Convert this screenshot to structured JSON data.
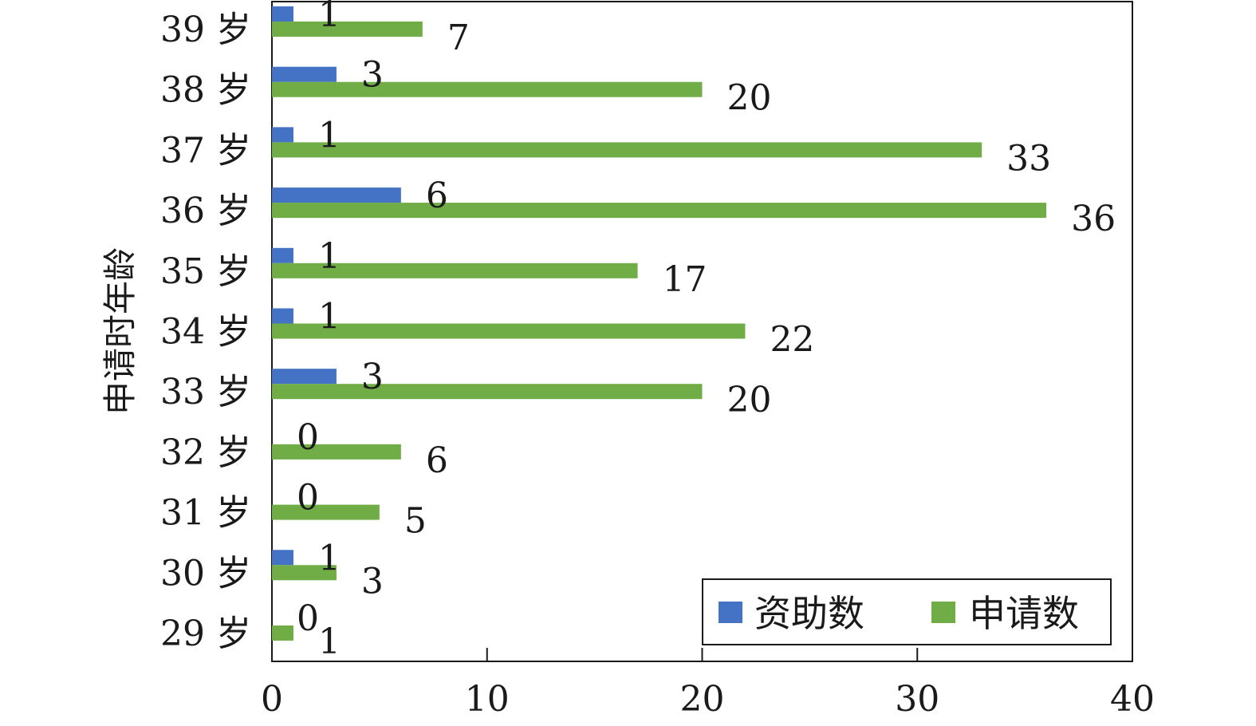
{
  "chart_data": {
    "type": "bar",
    "orientation": "horizontal",
    "ylabel": "申请时年龄",
    "xlabel": "",
    "categories": [
      "29 岁",
      "30 岁",
      "31 岁",
      "32 岁",
      "33 岁",
      "34 岁",
      "35 岁",
      "36 岁",
      "37 岁",
      "38 岁",
      "39 岁"
    ],
    "series": [
      {
        "name": "资助数",
        "color": "#4472c4",
        "values": [
          0,
          1,
          0,
          0,
          3,
          1,
          1,
          6,
          1,
          3,
          1
        ]
      },
      {
        "name": "申请数",
        "color": "#70ad47",
        "values": [
          1,
          3,
          5,
          6,
          20,
          22,
          17,
          36,
          33,
          20,
          7
        ]
      }
    ],
    "xlim": [
      0,
      40
    ],
    "xticks": [
      0,
      10,
      20,
      30,
      40
    ],
    "grid": false,
    "legend_position": "bottom-right",
    "data_labels": true
  }
}
